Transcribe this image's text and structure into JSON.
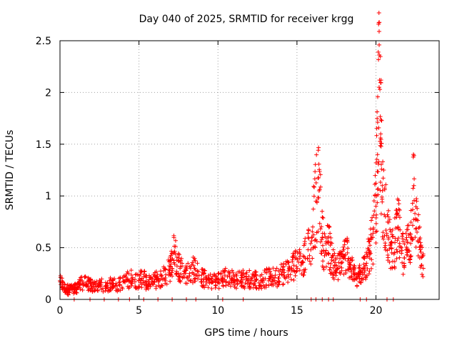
{
  "chart_data": {
    "type": "scatter",
    "title": "Day 040 of 2025, SRMTID for receiver krgg",
    "xlabel": "GPS time / hours",
    "ylabel": "SRMTID / TECUs",
    "xlim": [
      0,
      24
    ],
    "ylim": [
      0,
      2.5
    ],
    "x_ticks": [
      0,
      5,
      10,
      15,
      20
    ],
    "x_tick_labels": [
      "0",
      "5",
      "10",
      "15",
      "20"
    ],
    "y_ticks": [
      0,
      0.5,
      1,
      1.5,
      2,
      2.5
    ],
    "y_tick_labels": [
      "0",
      "0.5",
      "1",
      "1.5",
      "2",
      "2.5"
    ],
    "grid": true,
    "marker": "+",
    "color": "#ff0000",
    "series": [
      {
        "name": "SRMTID",
        "x": [
          0.0,
          0.2,
          0.4,
          0.6,
          0.8,
          1.0,
          1.2,
          1.5,
          1.8,
          2.0,
          2.3,
          2.6,
          3.0,
          3.3,
          3.6,
          4.0,
          4.3,
          4.6,
          5.0,
          5.3,
          5.5,
          5.8,
          6.1,
          6.4,
          6.7,
          7.0,
          7.2,
          7.4,
          7.6,
          7.9,
          8.2,
          8.5,
          8.8,
          9.1,
          9.4,
          9.7,
          10.0,
          10.3,
          10.6,
          10.9,
          11.2,
          11.5,
          11.8,
          12.1,
          12.4,
          12.7,
          13.0,
          13.3,
          13.6,
          13.9,
          14.2,
          14.5,
          14.8,
          15.1,
          15.4,
          15.7,
          16.0,
          16.2,
          16.4,
          16.6,
          16.8,
          17.0,
          17.2,
          17.4,
          17.6,
          17.8,
          18.0,
          18.2,
          18.4,
          18.6,
          18.8,
          19.0,
          19.2,
          19.4,
          19.6,
          19.8,
          20.0,
          20.1,
          20.2,
          20.3,
          20.4,
          20.6,
          20.8,
          21.0,
          21.2,
          21.4,
          21.6,
          21.8,
          22.0,
          22.2,
          22.4,
          22.6,
          22.8,
          23.0
        ],
        "y": [
          0.18,
          0.12,
          0.1,
          0.09,
          0.11,
          0.1,
          0.14,
          0.16,
          0.15,
          0.13,
          0.12,
          0.14,
          0.12,
          0.16,
          0.13,
          0.17,
          0.19,
          0.21,
          0.18,
          0.22,
          0.15,
          0.17,
          0.19,
          0.2,
          0.24,
          0.32,
          0.45,
          0.38,
          0.3,
          0.27,
          0.25,
          0.3,
          0.23,
          0.2,
          0.18,
          0.17,
          0.19,
          0.2,
          0.22,
          0.2,
          0.18,
          0.21,
          0.19,
          0.2,
          0.19,
          0.18,
          0.2,
          0.22,
          0.21,
          0.24,
          0.26,
          0.3,
          0.33,
          0.36,
          0.42,
          0.48,
          0.7,
          0.95,
          1.05,
          0.6,
          0.45,
          0.55,
          0.38,
          0.33,
          0.3,
          0.35,
          0.42,
          0.45,
          0.3,
          0.25,
          0.2,
          0.24,
          0.3,
          0.35,
          0.45,
          0.6,
          0.9,
          1.4,
          2.05,
          1.6,
          1.1,
          0.8,
          0.6,
          0.45,
          0.55,
          0.7,
          0.5,
          0.4,
          0.55,
          0.6,
          1.1,
          0.65,
          0.48,
          0.3
        ],
        "zero_points_x": [
          0.9,
          1.9,
          2.8,
          3.7,
          4.4,
          5.3,
          6.2,
          7.1,
          8.0,
          8.6,
          10.3,
          11.6,
          15.9,
          16.2,
          16.6,
          17.0,
          17.3,
          19.0,
          19.4,
          20.7,
          21.1
        ]
      }
    ]
  }
}
